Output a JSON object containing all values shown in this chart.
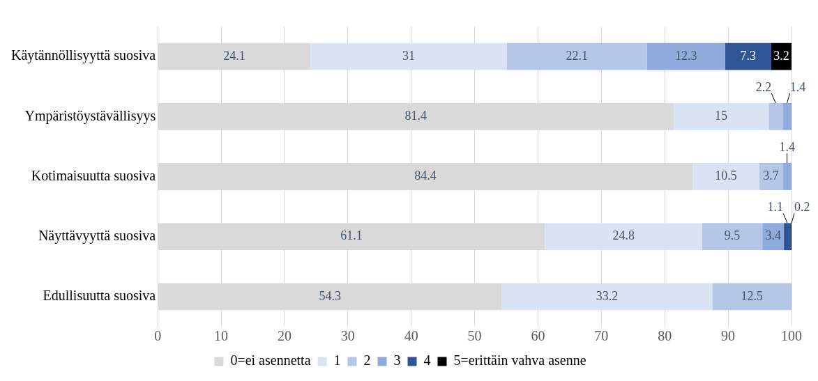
{
  "chart_data": {
    "type": "bar",
    "orientation": "horizontal",
    "stacked": true,
    "categories": [
      "Käytännöllisyyttä suosiva",
      "Ympäristöystävällisyys",
      "Kotimaisuutta suosiva",
      "Näyttävyyttä suosiva",
      "Edullisuutta suosiva"
    ],
    "series": [
      {
        "name": "0=ei asennetta",
        "color": "#d9d9d9",
        "values": [
          24.1,
          81.4,
          84.4,
          61.1,
          54.3
        ]
      },
      {
        "name": "1",
        "color": "#dae3f3",
        "values": [
          31,
          15,
          10.5,
          24.8,
          33.2
        ]
      },
      {
        "name": "2",
        "color": "#b4c7e7",
        "values": [
          22.1,
          2.2,
          3.7,
          9.5,
          12.5
        ]
      },
      {
        "name": "3",
        "color": "#8faadc",
        "values": [
          12.3,
          1.4,
          1.4,
          3.4,
          null
        ]
      },
      {
        "name": "4",
        "color": "#2f5597",
        "values": [
          7.3,
          null,
          null,
          1.1,
          null
        ]
      },
      {
        "name": "5=erittäin vahva asenne",
        "color": "#000000",
        "values": [
          3.2,
          null,
          null,
          0.2,
          null
        ]
      }
    ],
    "xlim": [
      0,
      100
    ],
    "xticks": [
      0,
      10,
      20,
      30,
      40,
      50,
      60,
      70,
      80,
      90,
      100
    ],
    "grid": "x",
    "legend": "bottom",
    "data_labels": true
  }
}
